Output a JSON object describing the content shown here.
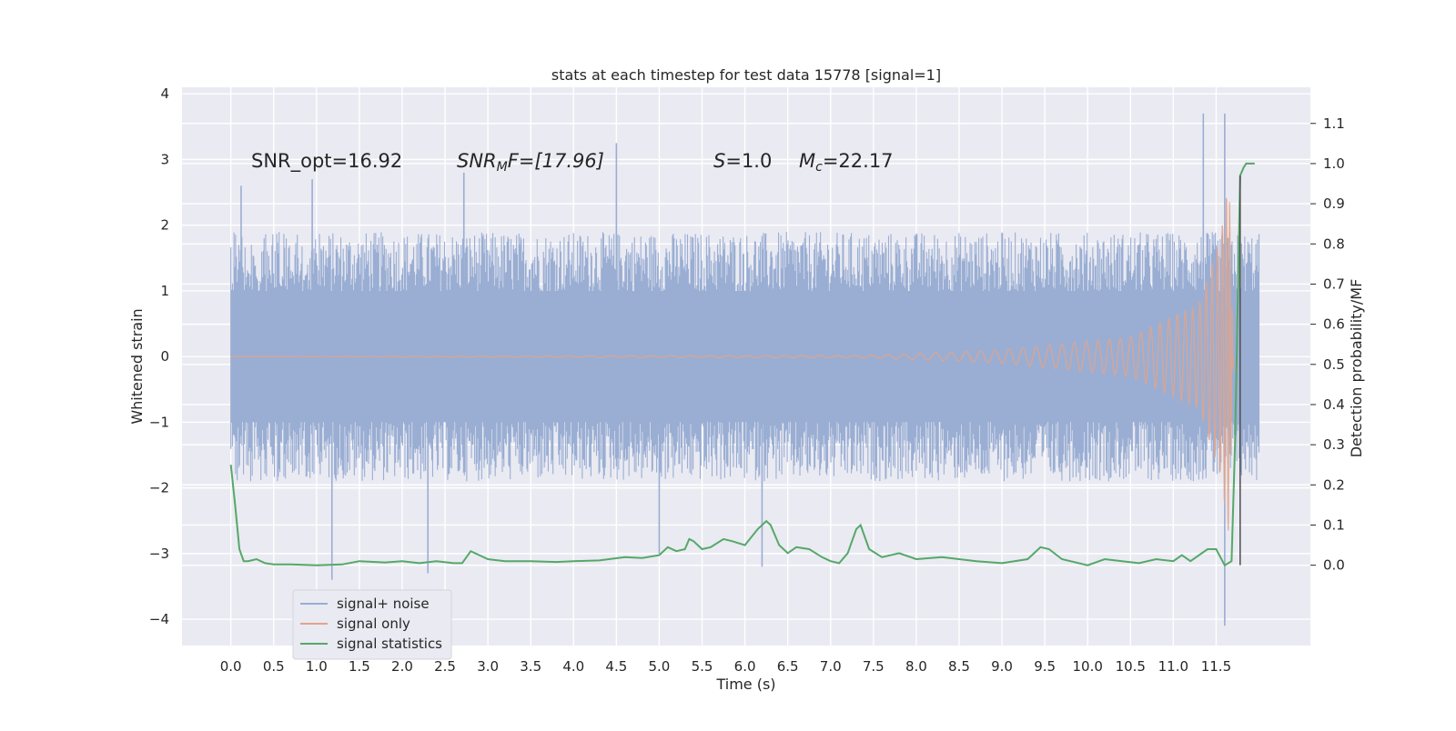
{
  "chart_data": {
    "type": "line",
    "title": "stats at each timestep for test data 15778 [signal=1]",
    "xlabel": "Time (s)",
    "ylabel_left": "Whitened strain",
    "ylabel_right": "Detection probability/MF",
    "xlim": [
      -0.57,
      12.6
    ],
    "ylim_left": [
      -4.4,
      4.1
    ],
    "ylim_right": [
      -0.2,
      1.19
    ],
    "x_ticks": [
      "0.0",
      "0.5",
      "1.0",
      "1.5",
      "2.0",
      "2.5",
      "3.0",
      "3.5",
      "4.0",
      "4.5",
      "5.0",
      "5.5",
      "6.0",
      "6.5",
      "7.0",
      "7.5",
      "8.0",
      "8.5",
      "9.0",
      "9.5",
      "10.0",
      "10.5",
      "11.0",
      "11.5"
    ],
    "y_ticks_left": [
      "−4",
      "−3",
      "−2",
      "−1",
      "0",
      "1",
      "2",
      "3",
      "4"
    ],
    "y_ticks_right": [
      "0.0",
      "0.1",
      "0.2",
      "0.3",
      "0.4",
      "0.5",
      "0.6",
      "0.7",
      "0.8",
      "0.9",
      "1.0",
      "1.1"
    ],
    "grid": true,
    "legend_position": "lower-left",
    "annotations": {
      "snr_opt": "SNR_opt=16.92",
      "snr_mf_main": "SNR",
      "snr_mf_sub": "M",
      "snr_mf_rest": "F=[17.96]",
      "s_main": "S",
      "s_rest": "=1.0",
      "mc_main": "M",
      "mc_sub": "c",
      "mc_rest": "=22.17"
    },
    "series": [
      {
        "name": "signal+ noise",
        "color": "#9aaed3",
        "axis": "left",
        "x_range": [
          0.0,
          12.0
        ],
        "typical_envelope": [
          -1.9,
          1.9
        ],
        "notable_peaks": [
          {
            "x": 0.12,
            "y": 2.6
          },
          {
            "x": 0.95,
            "y": 2.7
          },
          {
            "x": 1.18,
            "y": -3.4
          },
          {
            "x": 2.3,
            "y": -3.3
          },
          {
            "x": 2.72,
            "y": 2.8
          },
          {
            "x": 4.5,
            "y": 3.25
          },
          {
            "x": 5.0,
            "y": -3.0
          },
          {
            "x": 6.2,
            "y": -3.2
          },
          {
            "x": 11.35,
            "y": 3.7
          },
          {
            "x": 11.6,
            "y": 3.7
          },
          {
            "x": 11.6,
            "y": -4.1
          }
        ]
      },
      {
        "name": "signal only",
        "color": "#e0a48c",
        "axis": "left",
        "description_points": [
          {
            "x": 0.0,
            "amp": 0.0
          },
          {
            "x": 7.5,
            "amp": 0.02
          },
          {
            "x": 9.0,
            "amp": 0.1
          },
          {
            "x": 10.5,
            "amp": 0.3
          },
          {
            "x": 11.3,
            "amp": 0.8
          },
          {
            "x": 11.55,
            "amp": 1.8
          },
          {
            "x": 11.65,
            "amp": 2.8
          },
          {
            "x": 11.7,
            "amp": 0.0
          }
        ]
      },
      {
        "name": "signal statistics",
        "color": "#55a868",
        "axis": "right",
        "x": [
          0.0,
          0.05,
          0.1,
          0.15,
          0.2,
          0.3,
          0.4,
          0.5,
          0.7,
          1.0,
          1.3,
          1.5,
          1.8,
          2.0,
          2.2,
          2.4,
          2.6,
          2.7,
          2.8,
          3.0,
          3.2,
          3.5,
          3.8,
          4.0,
          4.3,
          4.6,
          4.8,
          5.0,
          5.1,
          5.2,
          5.3,
          5.35,
          5.4,
          5.5,
          5.6,
          5.75,
          5.85,
          6.0,
          6.15,
          6.25,
          6.3,
          6.4,
          6.5,
          6.6,
          6.75,
          6.9,
          7.0,
          7.1,
          7.2,
          7.3,
          7.35,
          7.45,
          7.6,
          7.8,
          8.0,
          8.3,
          8.7,
          9.0,
          9.3,
          9.45,
          9.55,
          9.7,
          10.0,
          10.2,
          10.4,
          10.6,
          10.8,
          11.0,
          11.1,
          11.2,
          11.4,
          11.5,
          11.6,
          11.68,
          11.72,
          11.78,
          11.82,
          11.85,
          11.9,
          11.95
        ],
        "y": [
          0.25,
          0.15,
          0.04,
          0.01,
          0.01,
          0.015,
          0.005,
          0.002,
          0.002,
          0.0,
          0.002,
          0.01,
          0.007,
          0.01,
          0.005,
          0.01,
          0.005,
          0.005,
          0.035,
          0.015,
          0.01,
          0.01,
          0.008,
          0.01,
          0.012,
          0.02,
          0.018,
          0.025,
          0.045,
          0.035,
          0.04,
          0.065,
          0.06,
          0.04,
          0.045,
          0.065,
          0.06,
          0.05,
          0.09,
          0.11,
          0.1,
          0.05,
          0.03,
          0.045,
          0.04,
          0.02,
          0.01,
          0.005,
          0.03,
          0.09,
          0.1,
          0.04,
          0.02,
          0.03,
          0.015,
          0.02,
          0.01,
          0.005,
          0.015,
          0.045,
          0.04,
          0.015,
          0.0,
          0.015,
          0.01,
          0.005,
          0.015,
          0.01,
          0.025,
          0.01,
          0.04,
          0.04,
          0.0,
          0.01,
          0.3,
          0.97,
          0.99,
          1.0,
          1.0,
          1.0
        ]
      }
    ]
  }
}
